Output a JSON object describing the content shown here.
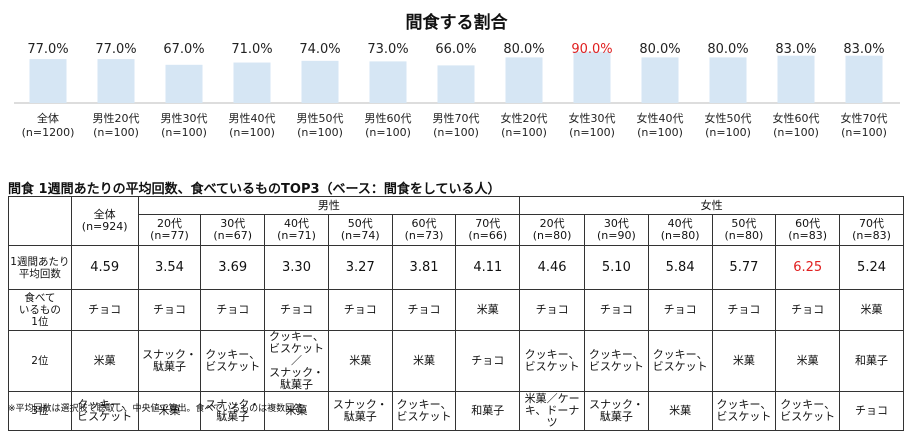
{
  "chart_data": {
    "type": "bar",
    "title": "間食する割合",
    "categories": [
      [
        "全体",
        "(n=1200)"
      ],
      [
        "男性20代",
        "(n=100)"
      ],
      [
        "男性30代",
        "(n=100)"
      ],
      [
        "男性40代",
        "(n=100)"
      ],
      [
        "男性50代",
        "(n=100)"
      ],
      [
        "男性60代",
        "(n=100)"
      ],
      [
        "男性70代",
        "(n=100)"
      ],
      [
        "女性20代",
        "(n=100)"
      ],
      [
        "女性30代",
        "(n=100)"
      ],
      [
        "女性40代",
        "(n=100)"
      ],
      [
        "女性50代",
        "(n=100)"
      ],
      [
        "女性60代",
        "(n=100)"
      ],
      [
        "女性70代",
        "(n=100)"
      ]
    ],
    "values": [
      77.0,
      77.0,
      67.0,
      71.0,
      74.0,
      73.0,
      66.0,
      80.0,
      90.0,
      80.0,
      80.0,
      83.0,
      83.0
    ],
    "value_labels": [
      "77.0%",
      "77.0%",
      "67.0%",
      "71.0%",
      "74.0%",
      "73.0%",
      "66.0%",
      "80.0%",
      "90.0%",
      "80.0%",
      "80.0%",
      "83.0%",
      "83.0%"
    ],
    "highlight_index": 8,
    "colors": {
      "bar": "#d6e6f4",
      "highlight_text": "#e02020"
    },
    "ylim": [
      0,
      100
    ]
  },
  "table": {
    "heading": "間食 1週間あたりの平均回数、食べているものTOP3（ベース：間食をしている人）",
    "groups": {
      "male": "男性",
      "female": "女性"
    },
    "columns": [
      [
        "全体",
        "(n=924)"
      ],
      [
        "20代",
        "(n=77)"
      ],
      [
        "30代",
        "(n=67)"
      ],
      [
        "40代",
        "(n=71)"
      ],
      [
        "50代",
        "(n=74)"
      ],
      [
        "60代",
        "(n=73)"
      ],
      [
        "70代",
        "(n=66)"
      ],
      [
        "20代",
        "(n=80)"
      ],
      [
        "30代",
        "(n=90)"
      ],
      [
        "40代",
        "(n=80)"
      ],
      [
        "50代",
        "(n=80)"
      ],
      [
        "60代",
        "(n=83)"
      ],
      [
        "70代",
        "(n=83)"
      ]
    ],
    "avg_label": [
      "1週間あたり",
      "平均回数"
    ],
    "avg_values": [
      "4.59",
      "3.54",
      "3.69",
      "3.30",
      "3.27",
      "3.81",
      "4.11",
      "4.46",
      "5.10",
      "5.84",
      "5.77",
      "6.25",
      "5.24"
    ],
    "avg_highlight_index": 11,
    "rank1_label": [
      "食べて",
      "いるもの",
      "1位"
    ],
    "rank1": [
      "チョコ",
      "チョコ",
      "チョコ",
      "チョコ",
      "チョコ",
      "チョコ",
      "米菓",
      "チョコ",
      "チョコ",
      "チョコ",
      "チョコ",
      "チョコ",
      "米菓"
    ],
    "rank2_label": "2位",
    "rank2": [
      [
        "米菓"
      ],
      [
        "スナック・",
        "駄菓子"
      ],
      [
        "クッキー、",
        "ビスケット"
      ],
      [
        "クッキー、",
        "ビスケット／",
        "スナック・",
        "駄菓子"
      ],
      [
        "米菓"
      ],
      [
        "米菓"
      ],
      [
        "チョコ"
      ],
      [
        "クッキー、",
        "ビスケット"
      ],
      [
        "クッキー、",
        "ビスケット"
      ],
      [
        "クッキー、",
        "ビスケット"
      ],
      [
        "米菓"
      ],
      [
        "米菓"
      ],
      [
        "和菓子"
      ]
    ],
    "rank3_label": "3位",
    "rank3": [
      [
        "クッキー、",
        "ビスケット"
      ],
      [
        "米菓"
      ],
      [
        "スナック・",
        "駄菓子"
      ],
      [
        "米菓"
      ],
      [
        "スナック・",
        "駄菓子"
      ],
      [
        "クッキー、",
        "ビスケット"
      ],
      [
        "和菓子"
      ],
      [
        "米菓／ケー",
        "キ、ドーナツ"
      ],
      [
        "スナック・",
        "駄菓子"
      ],
      [
        "米菓"
      ],
      [
        "クッキー、",
        "ビスケット"
      ],
      [
        "クッキー、",
        "ビスケット"
      ],
      [
        "チョコ"
      ]
    ]
  },
  "footnote": "※平均回数は選択肢で聴取し、中央値で算出。食べているものは複数回答。"
}
